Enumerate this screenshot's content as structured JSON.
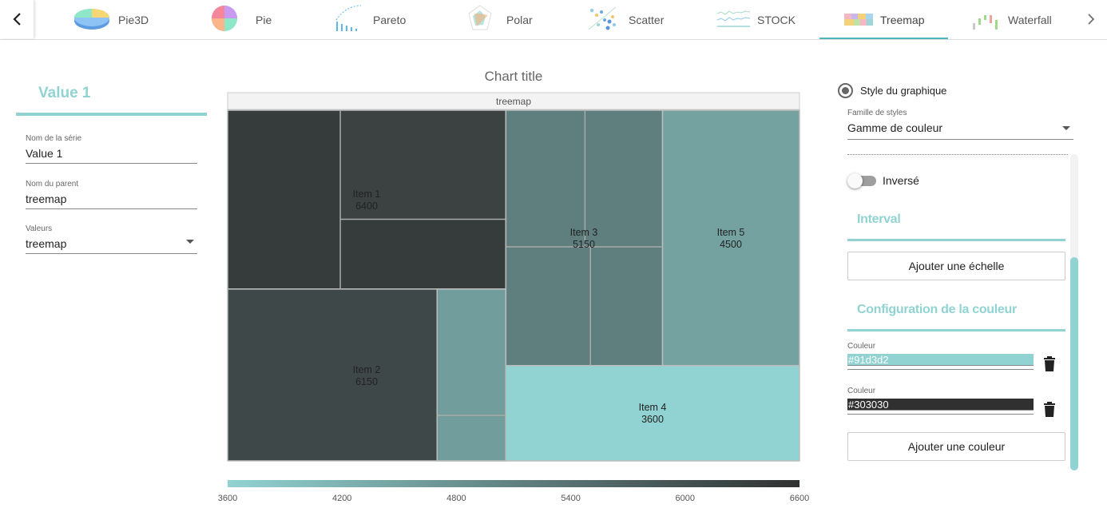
{
  "tabs": [
    {
      "label": "Pie3D",
      "icon": "pie3d-chart-icon"
    },
    {
      "label": "Pie",
      "icon": "pie-chart-icon"
    },
    {
      "label": "Pareto",
      "icon": "pareto-chart-icon"
    },
    {
      "label": "Polar",
      "icon": "polar-chart-icon"
    },
    {
      "label": "Scatter",
      "icon": "scatter-chart-icon"
    },
    {
      "label": "STOCK",
      "icon": "stock-chart-icon"
    },
    {
      "label": "Treemap",
      "icon": "treemap-chart-icon",
      "active": true
    },
    {
      "label": "Waterfall",
      "icon": "waterfall-chart-icon"
    }
  ],
  "left_panel": {
    "title": "Value 1",
    "series_name": {
      "label": "Nom de la série",
      "value": "Value 1"
    },
    "parent_name": {
      "label": "Nom du parent",
      "value": "treemap"
    },
    "values": {
      "label": "Valeurs",
      "value": "treemap"
    }
  },
  "right_panel": {
    "style_radio_label": "Style du graphique",
    "style_family": {
      "label": "Famille de styles",
      "value": "Gamme de couleur"
    },
    "inverse_label": "Inversé",
    "interval_title": "Interval",
    "add_scale_label": "Ajouter une échelle",
    "color_config_title": "Configuration de la couleur",
    "colors": [
      {
        "label": "Couleur",
        "value": "#91d3d2"
      },
      {
        "label": "Couleur",
        "value": "#303030"
      }
    ],
    "add_color_label": "Ajouter une couleur"
  },
  "chart_data": {
    "type": "treemap",
    "title": "Chart title",
    "root_label": "treemap",
    "items": [
      {
        "name": "Item 1",
        "value": 6400
      },
      {
        "name": "Item 2",
        "value": 6150
      },
      {
        "name": "Item 3",
        "value": 5150
      },
      {
        "name": "Item 4",
        "value": 3600
      },
      {
        "name": "Item 5",
        "value": 4500
      }
    ],
    "color_scale": {
      "min": 3600,
      "max": 6600,
      "colors": [
        "#91d3d2",
        "#303030"
      ],
      "ticks": [
        "3600",
        "4200",
        "4800",
        "5400",
        "6000",
        "6600"
      ]
    }
  }
}
